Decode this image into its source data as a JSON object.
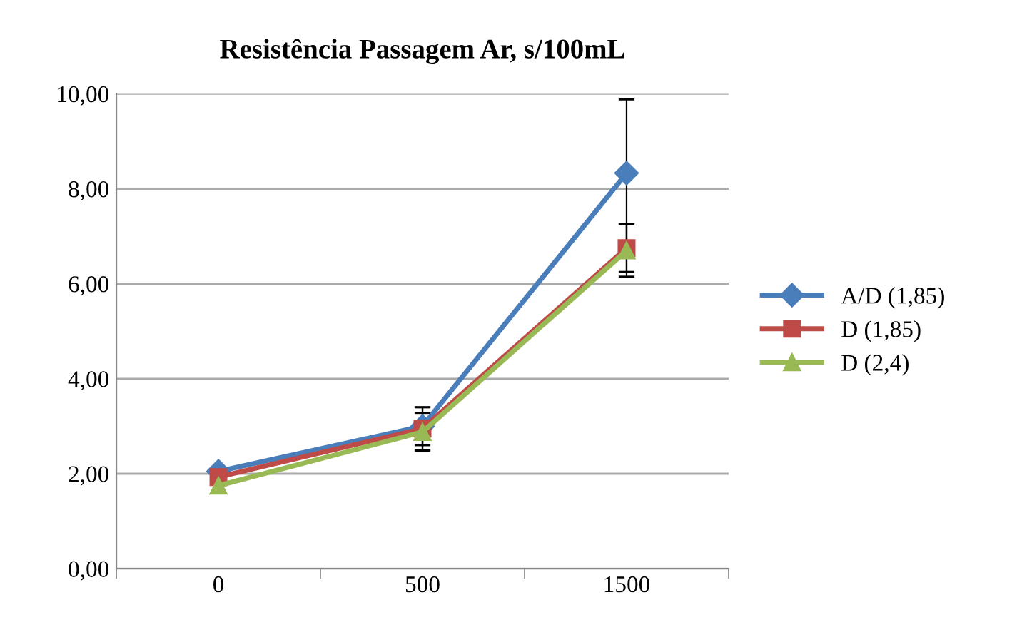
{
  "chart_data": {
    "type": "line",
    "title": "Resistência Passagem Ar, s/100mL",
    "categories": [
      "0",
      "500",
      "1500"
    ],
    "series": [
      {
        "name": "A/D (1,85)",
        "color": "#4a7ebb",
        "marker": "diamond",
        "values": [
          2.05,
          3.0,
          8.33
        ],
        "errors": [
          null,
          0.4,
          1.55
        ]
      },
      {
        "name": "D (1,85)",
        "color": "#be4b48",
        "marker": "square",
        "values": [
          1.93,
          2.95,
          6.75
        ],
        "errors": [
          null,
          0.45,
          0.5
        ]
      },
      {
        "name": "D (2,4)",
        "color": "#98b954",
        "marker": "triangle",
        "values": [
          1.75,
          2.88,
          6.7
        ],
        "errors": [
          null,
          0.4,
          0.55
        ]
      }
    ],
    "ylim": [
      0,
      10
    ],
    "yticks": [
      {
        "value": 0,
        "label": "0,00"
      },
      {
        "value": 2,
        "label": "2,00"
      },
      {
        "value": 4,
        "label": "4,00"
      },
      {
        "value": 6,
        "label": "6,00"
      },
      {
        "value": 8,
        "label": "8,00"
      },
      {
        "value": 10,
        "label": "10,00"
      }
    ],
    "grid": "y",
    "legend": "right",
    "line_style": "solid"
  }
}
